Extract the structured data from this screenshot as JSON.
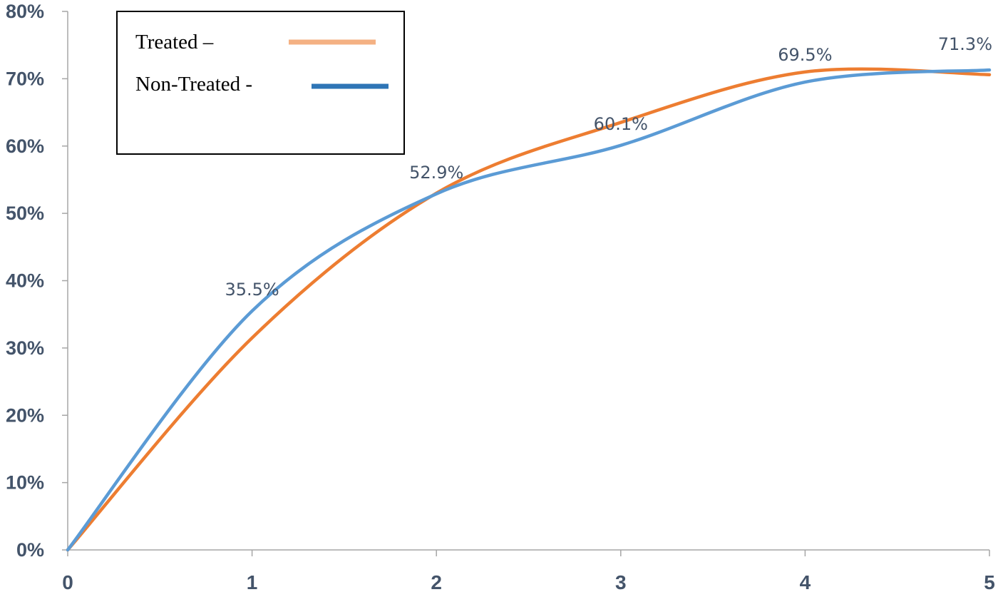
{
  "chart_data": {
    "type": "line",
    "title": "",
    "xlabel": "",
    "ylabel": "",
    "x": [
      0,
      1,
      2,
      3,
      4,
      5
    ],
    "xlim": [
      0,
      5
    ],
    "ylim": [
      0,
      80
    ],
    "x_ticks": [
      "0",
      "1",
      "2",
      "3",
      "4",
      "5"
    ],
    "y_ticks": [
      "0%",
      "10%",
      "20%",
      "30%",
      "40%",
      "50%",
      "60%",
      "70%",
      "80%"
    ],
    "grid": false,
    "legend_position": "top-left",
    "series": [
      {
        "name": "Treated –",
        "color": "#ed7d31",
        "legend_color": "#f4b183",
        "values": [
          0,
          31.5,
          53.0,
          63.5,
          71.0,
          70.6
        ]
      },
      {
        "name": "Non-Treated -",
        "color": "#5b9bd5",
        "legend_color": "#2e75b6",
        "values": [
          0,
          35.5,
          52.9,
          60.1,
          69.5,
          71.3
        ]
      }
    ],
    "data_labels": [
      {
        "x": 1,
        "text": "35.5%"
      },
      {
        "x": 2,
        "text": "52.9%"
      },
      {
        "x": 3,
        "text": "60.1%"
      },
      {
        "x": 4,
        "text": "69.5%"
      },
      {
        "x": 5,
        "text": "71.3%"
      }
    ]
  }
}
